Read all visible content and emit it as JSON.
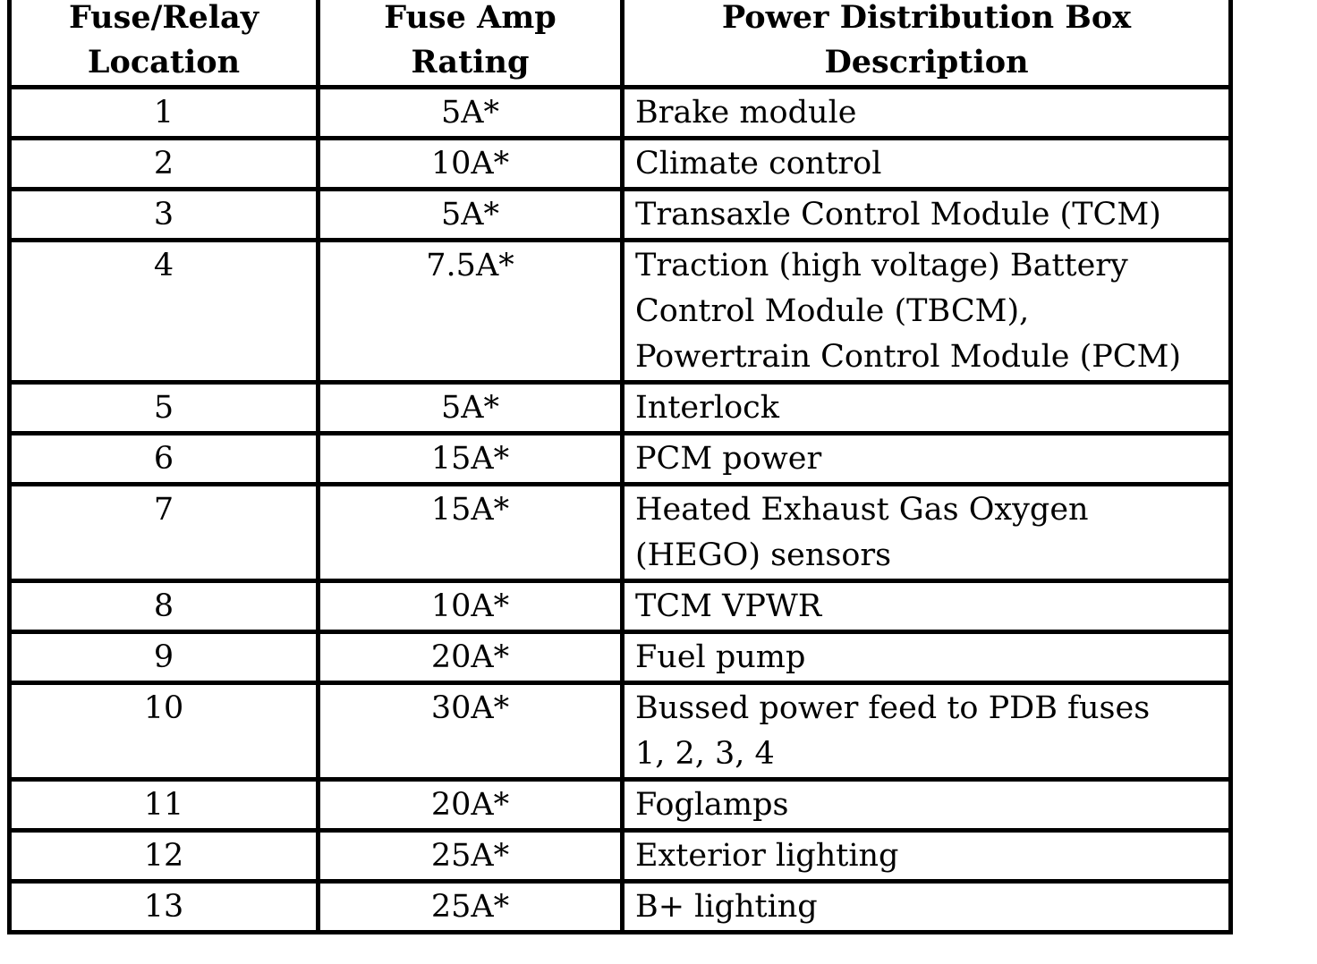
{
  "table": {
    "headers": [
      "Fuse/Relay Location",
      "Fuse Amp Rating",
      "Power Distribution Box Description"
    ],
    "header_lines": [
      [
        "Fuse/Relay",
        "Location"
      ],
      [
        "Fuse Amp",
        "Rating"
      ],
      [
        "Power Distribution Box",
        "Description"
      ]
    ],
    "rows": [
      {
        "location": "1",
        "rating": "5A*",
        "description": [
          "Brake module"
        ]
      },
      {
        "location": "2",
        "rating": "10A*",
        "description": [
          "Climate control"
        ]
      },
      {
        "location": "3",
        "rating": "5A*",
        "description": [
          "Transaxle Control Module (TCM)"
        ]
      },
      {
        "location": "4",
        "rating": "7.5A*",
        "description": [
          "Traction (high voltage) Battery",
          "Control Module (TBCM),",
          "Powertrain Control Module (PCM)"
        ]
      },
      {
        "location": "5",
        "rating": "5A*",
        "description": [
          "Interlock"
        ]
      },
      {
        "location": "6",
        "rating": "15A*",
        "description": [
          "PCM power"
        ]
      },
      {
        "location": "7",
        "rating": "15A*",
        "description": [
          "Heated Exhaust Gas Oxygen",
          "(HEGO) sensors"
        ]
      },
      {
        "location": "8",
        "rating": "10A*",
        "description": [
          "TCM VPWR"
        ]
      },
      {
        "location": "9",
        "rating": "20A*",
        "description": [
          "Fuel pump"
        ]
      },
      {
        "location": "10",
        "rating": "30A*",
        "description": [
          "Bussed power feed to PDB fuses",
          "1, 2, 3, 4"
        ]
      },
      {
        "location": "11",
        "rating": "20A*",
        "description": [
          "Foglamps"
        ]
      },
      {
        "location": "12",
        "rating": "25A*",
        "description": [
          "Exterior lighting"
        ]
      },
      {
        "location": "13",
        "rating": "25A*",
        "description": [
          "B+ lighting"
        ]
      }
    ]
  }
}
